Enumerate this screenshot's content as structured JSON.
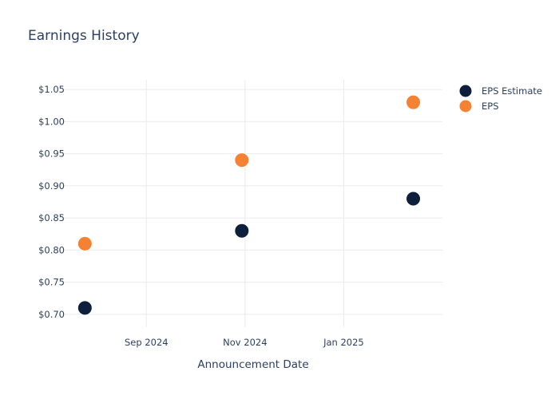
{
  "chart_data": {
    "type": "scatter",
    "title": "Earnings History",
    "xlabel": "Announcement Date",
    "ylabel": "",
    "x": [
      "2024-07-25",
      "2024-10-30",
      "2025-02-13"
    ],
    "x_tick_labels": [
      "Sep 2024",
      "Nov 2024",
      "Jan 2025"
    ],
    "x_tick_dates": [
      "2024-09-01",
      "2024-11-01",
      "2025-01-01"
    ],
    "xlim": [
      "2024-07-12",
      "2025-03-03"
    ],
    "y_tick_values": [
      0.7,
      0.75,
      0.8,
      0.85,
      0.9,
      0.95,
      1.0,
      1.05
    ],
    "y_tick_labels": [
      "$0.70",
      "$0.75",
      "$0.80",
      "$0.85",
      "$0.90",
      "$0.95",
      "$1.00",
      "$1.05"
    ],
    "ylim": [
      0.68,
      1.065
    ],
    "grid": true,
    "legend_position": "top-right",
    "series": [
      {
        "name": "EPS Estimate",
        "color": "#0d1f3c",
        "values": [
          0.71,
          0.83,
          0.88
        ]
      },
      {
        "name": "EPS",
        "color": "#f58233",
        "values": [
          0.81,
          0.94,
          1.03
        ]
      }
    ]
  }
}
